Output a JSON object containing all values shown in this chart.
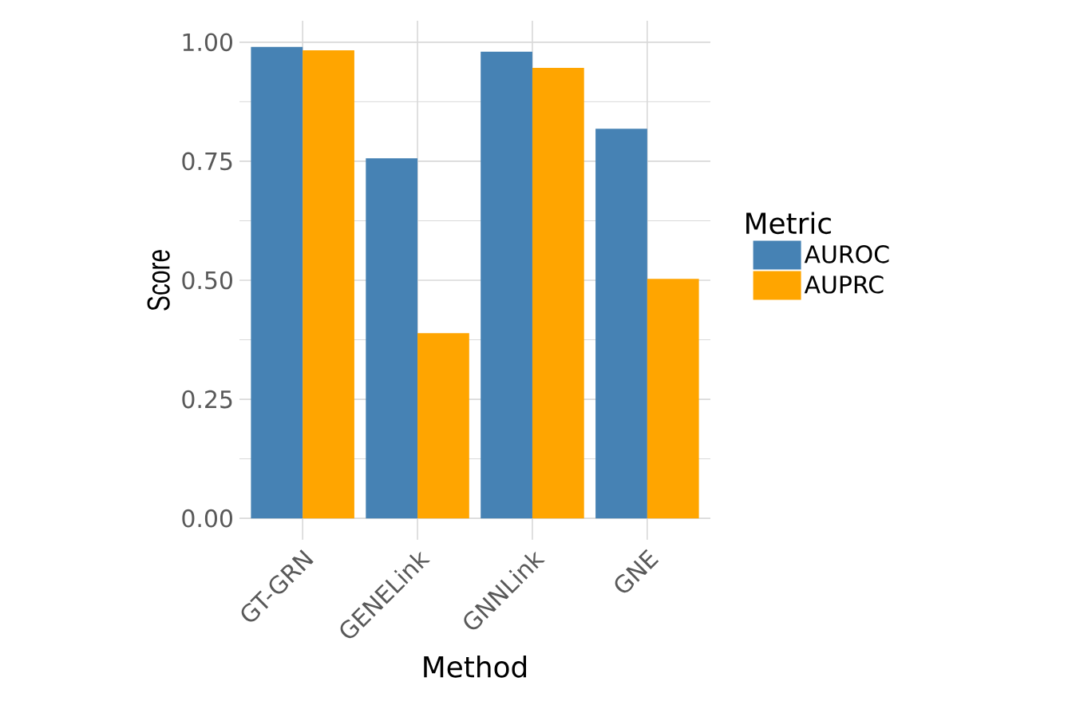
{
  "chart_data": {
    "type": "bar",
    "xlabel": "Method",
    "ylabel": "Score",
    "legend_title": "Metric",
    "categories": [
      "GT-GRN",
      "GENELink",
      "GNNLink",
      "GNE"
    ],
    "series": [
      {
        "name": "AUROC",
        "color": "#4682b4",
        "values": [
          0.99,
          0.756,
          0.98,
          0.818
        ]
      },
      {
        "name": "AUPRC",
        "color": "#ffa500",
        "values": [
          0.983,
          0.389,
          0.946,
          0.503
        ]
      }
    ],
    "ylim": [
      -0.045,
      1.045
    ],
    "yticks": [
      {
        "value": 0,
        "label": "0.00"
      },
      0.25,
      {
        "value": 0.5,
        "label": "0.50"
      },
      0.75,
      {
        "value": 1,
        "label": "1.00"
      },
      {
        "value": 0.125,
        "label": null
      },
      {
        "value": 0.375,
        "label": null
      },
      {
        "value": 0.625,
        "label": null
      },
      {
        "value": 0.875,
        "label": null
      }
    ],
    "grid": true,
    "legend": "right"
  }
}
